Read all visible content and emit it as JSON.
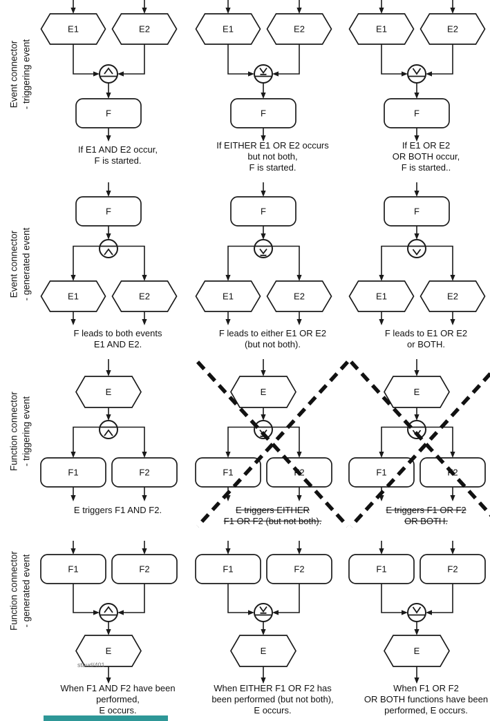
{
  "watermark": "staud/401",
  "footer_bar_color": "#2e9797",
  "diagram_stroke_color": "#1a1a1a",
  "rows": [
    {
      "label": "Event connector\n- triggering event",
      "topology": "events-to-function",
      "top_nodes": [
        "E1",
        "E2"
      ],
      "bottom_nodes": [
        "F"
      ],
      "cells": [
        {
          "connector": "and",
          "caption": "If E1 AND E2 occur,\nF is started.",
          "crossed": false,
          "struck": false
        },
        {
          "connector": "xor",
          "caption": "If EITHER E1 OR E2 occurs\nbut not both,\nF is started.",
          "crossed": false,
          "struck": false
        },
        {
          "connector": "or",
          "caption": "If E1 OR E2\nOR BOTH occur,\nF is started..",
          "crossed": false,
          "struck": false
        }
      ]
    },
    {
      "label": "Event connector\n- generated event",
      "topology": "function-to-events",
      "top_nodes": [
        "F"
      ],
      "bottom_nodes": [
        "E1",
        "E2"
      ],
      "cells": [
        {
          "connector": "and",
          "caption": "F leads to both events\nE1 AND E2.",
          "crossed": false,
          "struck": false
        },
        {
          "connector": "xor",
          "caption": "F leads to either E1 OR E2\n(but not both).",
          "crossed": false,
          "struck": false
        },
        {
          "connector": "or",
          "caption": "F leads to E1 OR E2\nor BOTH.",
          "crossed": false,
          "struck": false
        }
      ]
    },
    {
      "label": "Function connector\n- triggering event",
      "topology": "event-to-functions",
      "top_nodes": [
        "E"
      ],
      "bottom_nodes": [
        "F1",
        "F2"
      ],
      "cells": [
        {
          "connector": "and",
          "caption": "E triggers F1 AND F2.",
          "crossed": false,
          "struck": false
        },
        {
          "connector": "xor",
          "caption": "E triggers EITHER\nF1 OR F2 (but not both).",
          "crossed": true,
          "struck": true
        },
        {
          "connector": "or",
          "caption": "E triggers F1 OR F2\nOR BOTH.",
          "crossed": true,
          "struck": true
        }
      ]
    },
    {
      "label": "Function connector\n- generated event",
      "topology": "functions-to-event",
      "top_nodes": [
        "F1",
        "F2"
      ],
      "bottom_nodes": [
        "E"
      ],
      "cells": [
        {
          "connector": "and",
          "caption": "When F1 AND F2 have been\nperformed,\nE occurs.",
          "crossed": false,
          "struck": false
        },
        {
          "connector": "xor",
          "caption": "When EITHER F1 OR F2 has\nbeen performed (but not both),\nE occurs.",
          "crossed": false,
          "struck": false
        },
        {
          "connector": "or",
          "caption": "When F1 OR F2\nOR BOTH functions have been\nperformed, E occurs.",
          "crossed": false,
          "struck": false
        }
      ]
    }
  ]
}
